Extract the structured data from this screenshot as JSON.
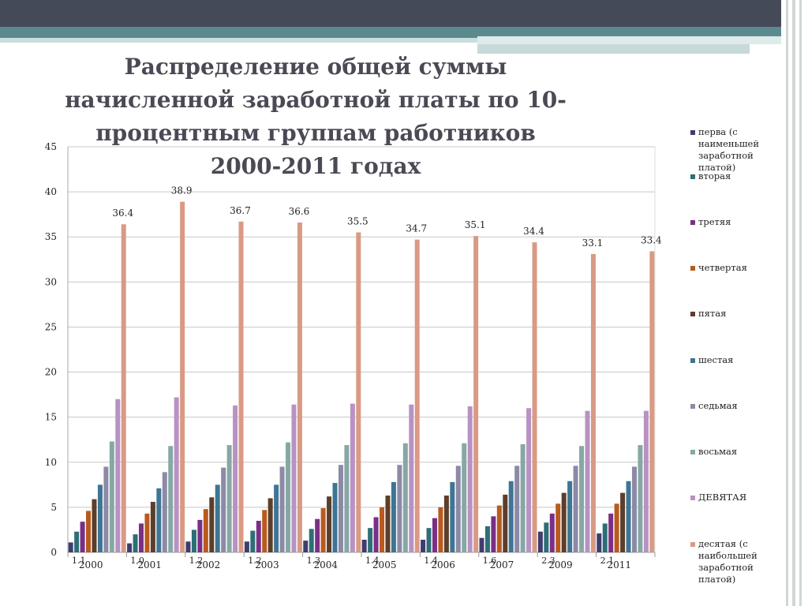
{
  "slide": {
    "title": "Распределение общей суммы начисленной заработной платы по 10-процентным группам работников 2000-2011 годах"
  },
  "colors": {
    "series": [
      "#3f3d6e",
      "#2e6e76",
      "#7a2f86",
      "#b95a1e",
      "#5c3e2a",
      "#3f7594",
      "#8c8aa6",
      "#86a8a4",
      "#b892c2",
      "#d99a84"
    ]
  },
  "chart_data": {
    "type": "bar",
    "title": "Распределение общей суммы начисленной заработной платы по 10-процентным группам работников 2000-2011 годах",
    "xlabel": "",
    "ylabel": "",
    "ylim": [
      0,
      45
    ],
    "yticks": [
      "0",
      "5",
      "10",
      "15",
      "20",
      "25",
      "30",
      "35",
      "40",
      "45"
    ],
    "grid": "horizontal",
    "legend_position": "right",
    "categories": [
      "2000",
      "2001",
      "2002",
      "2003",
      "2004",
      "2005",
      "2006",
      "2007",
      "2009",
      "2011"
    ],
    "series": [
      {
        "name": "перва (с наименьшей заработной платой)",
        "values": [
          1.1,
          1.0,
          1.2,
          1.2,
          1.3,
          1.4,
          1.4,
          1.6,
          2.3,
          2.1
        ],
        "labels": [
          "1.1",
          "1,0",
          "1.2",
          "1.2",
          "1.3",
          "1.4",
          "1.4",
          "1.6",
          "2.3",
          "2.1"
        ]
      },
      {
        "name": "вторая",
        "values": [
          2.3,
          2.0,
          2.5,
          2.4,
          2.6,
          2.7,
          2.7,
          2.9,
          3.3,
          3.2
        ]
      },
      {
        "name": "третяя",
        "values": [
          3.4,
          3.2,
          3.6,
          3.5,
          3.7,
          3.9,
          3.8,
          4.0,
          4.3,
          4.3
        ]
      },
      {
        "name": "четвертая",
        "values": [
          4.6,
          4.3,
          4.8,
          4.7,
          4.9,
          5.0,
          5.0,
          5.2,
          5.4,
          5.4
        ]
      },
      {
        "name": "пятая",
        "values": [
          5.9,
          5.6,
          6.1,
          6.0,
          6.2,
          6.3,
          6.3,
          6.4,
          6.6,
          6.6
        ]
      },
      {
        "name": "шестая",
        "values": [
          7.5,
          7.1,
          7.5,
          7.5,
          7.7,
          7.8,
          7.8,
          7.9,
          7.9,
          7.9
        ]
      },
      {
        "name": "седьмая",
        "values": [
          9.5,
          8.9,
          9.4,
          9.5,
          9.7,
          9.7,
          9.6,
          9.6,
          9.6,
          9.5
        ]
      },
      {
        "name": "восьмая",
        "values": [
          12.3,
          11.8,
          11.9,
          12.2,
          11.9,
          12.1,
          12.1,
          12.0,
          11.8,
          11.9
        ]
      },
      {
        "name": "ДЕВЯТАЯ",
        "values": [
          17.0,
          17.2,
          16.3,
          16.4,
          16.5,
          16.4,
          16.2,
          16.0,
          15.7,
          15.7
        ]
      },
      {
        "name": "десятая (с наибольшей заработной платой)",
        "values": [
          36.4,
          38.9,
          36.7,
          36.6,
          35.5,
          34.7,
          35.1,
          34.4,
          33.1,
          33.4
        ],
        "labels": [
          "36.4",
          "38.9",
          "36.7",
          "36.6",
          "35.5",
          "34.7",
          "35.1",
          "34.4",
          "33.1",
          "33.4"
        ]
      }
    ]
  }
}
